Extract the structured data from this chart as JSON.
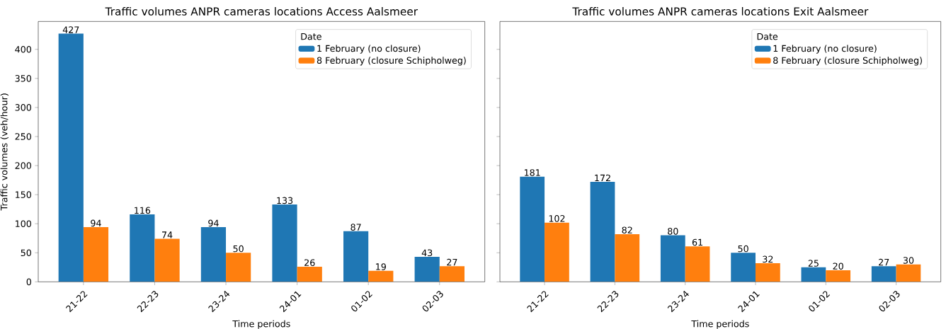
{
  "chart_data": [
    {
      "type": "bar",
      "title": "Traffic volumes ANPR cameras locations Access Aalsmeer",
      "xlabel": "Time periods",
      "ylabel": "Traffic volumes (veh/hour)",
      "categories": [
        "21-22",
        "22-23",
        "23-24",
        "24-01",
        "01-02",
        "02-03"
      ],
      "series": [
        {
          "name": "1 February (no closure)",
          "color": "#1f77b4",
          "values": [
            427,
            116,
            94,
            133,
            87,
            43
          ]
        },
        {
          "name": "8 February (closure Schipholweg)",
          "color": "#ff7f0e",
          "values": [
            94,
            74,
            50,
            26,
            19,
            27
          ]
        }
      ],
      "ylim": [
        0,
        448
      ],
      "yticks": [
        0,
        50,
        100,
        150,
        200,
        250,
        300,
        350,
        400
      ],
      "data_labels": true,
      "legend": "top right",
      "legend_title": "Date"
    },
    {
      "type": "bar",
      "title": "Traffic volumes ANPR cameras locations Exit Aalsmeer",
      "xlabel": "Time periods",
      "categories": [
        "21-22",
        "22-23",
        "23-24",
        "24-01",
        "01-02",
        "02-03"
      ],
      "series": [
        {
          "name": "1 February (no closure)",
          "color": "#1f77b4",
          "values": [
            181,
            172,
            80,
            50,
            25,
            27
          ]
        },
        {
          "name": "8 February (closure Schipholweg)",
          "color": "#ff7f0e",
          "values": [
            102,
            82,
            61,
            32,
            20,
            30
          ]
        }
      ],
      "ylim": [
        0,
        448
      ],
      "yticks": [
        0,
        50,
        100,
        150,
        200,
        250,
        300,
        350,
        400
      ],
      "data_labels": true,
      "legend": "top right",
      "legend_title": "Date",
      "tick_labels": "x"
    }
  ]
}
